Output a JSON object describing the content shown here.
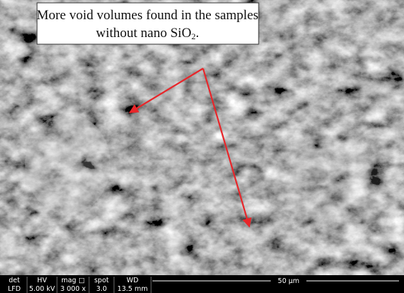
{
  "annotation": {
    "line1": "More void volumes found in the samples",
    "line2": {
      "text": "without nano SiO",
      "subscript": "2",
      "end": "."
    }
  },
  "info_bar": {
    "headers": [
      "det",
      "HV",
      "mag □",
      "spot",
      "WD"
    ],
    "values": [
      "LFD",
      "5.00 kV",
      "3 000 x",
      "3.0",
      "13.5 mm"
    ],
    "scale": "50 μm"
  }
}
